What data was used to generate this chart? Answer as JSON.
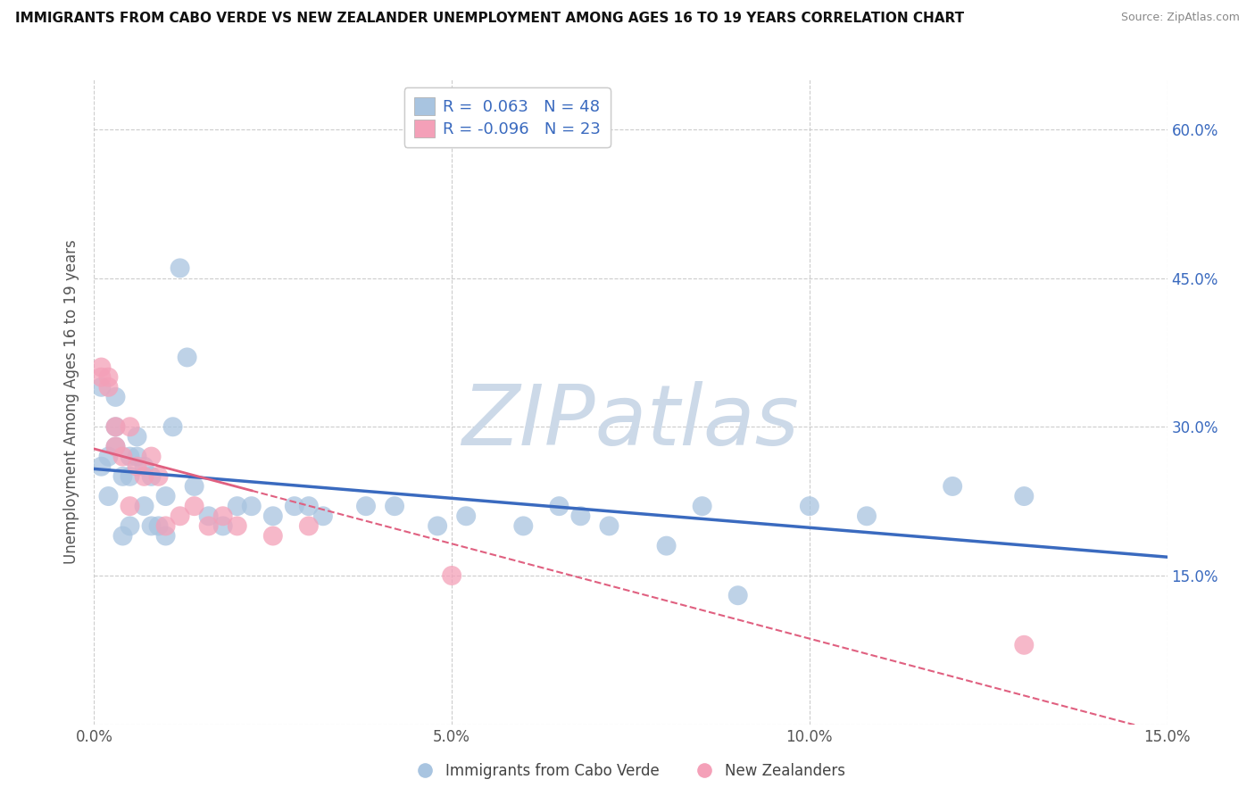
{
  "title": "IMMIGRANTS FROM CABO VERDE VS NEW ZEALANDER UNEMPLOYMENT AMONG AGES 16 TO 19 YEARS CORRELATION CHART",
  "source": "Source: ZipAtlas.com",
  "ylabel": "Unemployment Among Ages 16 to 19 years",
  "xlim": [
    0.0,
    0.15
  ],
  "ylim": [
    0.0,
    0.65
  ],
  "xticks": [
    0.0,
    0.05,
    0.1,
    0.15
  ],
  "xtick_labels": [
    "0.0%",
    "5.0%",
    "10.0%",
    "15.0%"
  ],
  "yticks": [
    0.0,
    0.15,
    0.3,
    0.45,
    0.6
  ],
  "ytick_labels_right": [
    "",
    "15.0%",
    "30.0%",
    "45.0%",
    "60.0%"
  ],
  "R_blue": 0.063,
  "N_blue": 48,
  "R_pink": -0.096,
  "N_pink": 23,
  "blue_dot_color": "#a8c4e0",
  "pink_dot_color": "#f4a0b8",
  "trend_blue_color": "#3a6abf",
  "trend_pink_color": "#e06080",
  "legend_blue_label": "Immigrants from Cabo Verde",
  "legend_pink_label": "New Zealanders",
  "watermark": "ZIPatlas",
  "watermark_color": "#ccd9e8",
  "blue_scatter_x": [
    0.001,
    0.001,
    0.002,
    0.002,
    0.003,
    0.003,
    0.003,
    0.004,
    0.004,
    0.005,
    0.005,
    0.005,
    0.006,
    0.006,
    0.007,
    0.007,
    0.008,
    0.008,
    0.009,
    0.01,
    0.01,
    0.011,
    0.012,
    0.013,
    0.014,
    0.016,
    0.018,
    0.02,
    0.022,
    0.025,
    0.028,
    0.03,
    0.032,
    0.038,
    0.042,
    0.048,
    0.052,
    0.06,
    0.065,
    0.068,
    0.072,
    0.08,
    0.085,
    0.09,
    0.1,
    0.108,
    0.12,
    0.13
  ],
  "blue_scatter_y": [
    0.26,
    0.34,
    0.23,
    0.27,
    0.28,
    0.3,
    0.33,
    0.19,
    0.25,
    0.25,
    0.27,
    0.2,
    0.27,
    0.29,
    0.22,
    0.26,
    0.25,
    0.2,
    0.2,
    0.19,
    0.23,
    0.3,
    0.46,
    0.37,
    0.24,
    0.21,
    0.2,
    0.22,
    0.22,
    0.21,
    0.22,
    0.22,
    0.21,
    0.22,
    0.22,
    0.2,
    0.21,
    0.2,
    0.22,
    0.21,
    0.2,
    0.18,
    0.22,
    0.13,
    0.22,
    0.21,
    0.24,
    0.23
  ],
  "pink_scatter_x": [
    0.001,
    0.001,
    0.002,
    0.002,
    0.003,
    0.003,
    0.004,
    0.005,
    0.005,
    0.006,
    0.007,
    0.008,
    0.009,
    0.01,
    0.012,
    0.014,
    0.016,
    0.018,
    0.02,
    0.025,
    0.03,
    0.05,
    0.13
  ],
  "pink_scatter_y": [
    0.36,
    0.35,
    0.35,
    0.34,
    0.3,
    0.28,
    0.27,
    0.3,
    0.22,
    0.26,
    0.25,
    0.27,
    0.25,
    0.2,
    0.21,
    0.22,
    0.2,
    0.21,
    0.2,
    0.19,
    0.2,
    0.15,
    0.08
  ]
}
